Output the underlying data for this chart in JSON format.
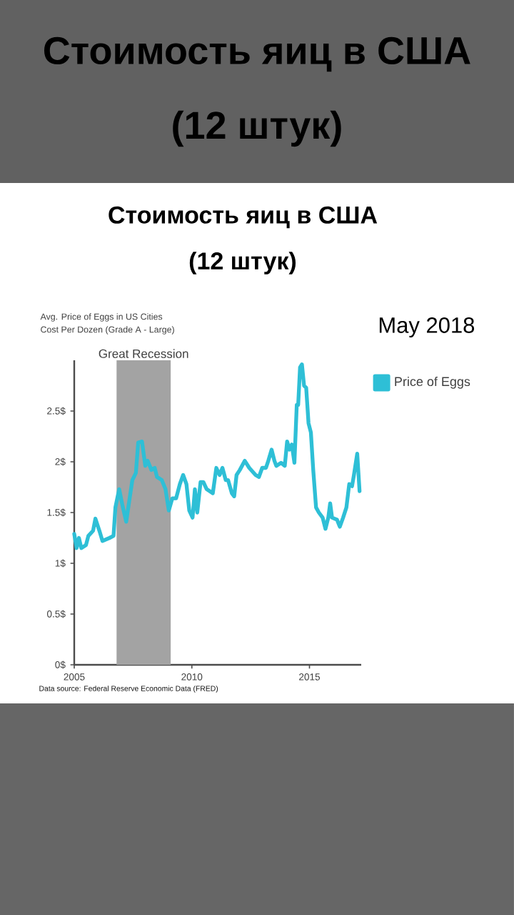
{
  "chart_data": {
    "type": "line",
    "title": "Стоимость яиц в США",
    "subtitle": "(12 штук)",
    "annotations": [
      "Avg. Price of Eggs in US Cities",
      "Cost Per Dozen (Grade A - Large)",
      "May 2018",
      "Data source: Federal Reserve Economic Data (FRED)"
    ],
    "xlim": [
      2005,
      2017.2
    ],
    "xticks": [
      2005,
      2010,
      2015
    ],
    "ylim": [
      0,
      3.0
    ],
    "yticks": [
      {
        "value": 0,
        "label": "0$"
      },
      {
        "value": 0.5,
        "label": "0.5$"
      },
      {
        "value": 1,
        "label": "1$"
      },
      {
        "value": 1.5,
        "label": "1.5$"
      },
      {
        "value": 2,
        "label": "2$"
      },
      {
        "value": 2.5,
        "label": "2.5$"
      }
    ],
    "bands": [
      {
        "axis": "x",
        "from": 2006.8,
        "to": 2009.1,
        "label": "Great Recession",
        "color": "#a3a3a3"
      }
    ],
    "legend": "top right",
    "marker": "none",
    "line_style": "solid",
    "series": [
      {
        "name": "Price of Eggs",
        "color": "#2ebfd6",
        "x": [
          2005.0,
          2005.1,
          2005.2,
          2005.3,
          2005.5,
          2005.6,
          2005.8,
          2005.9,
          2006.07,
          2006.2,
          2006.5,
          2006.67,
          2006.75,
          2006.91,
          2007.05,
          2007.21,
          2007.31,
          2007.47,
          2007.62,
          2007.72,
          2007.88,
          2008.02,
          2008.12,
          2008.28,
          2008.42,
          2008.52,
          2008.72,
          2008.88,
          2009.02,
          2009.17,
          2009.33,
          2009.49,
          2009.63,
          2009.77,
          2009.89,
          2010.03,
          2010.13,
          2010.23,
          2010.37,
          2010.49,
          2010.63,
          2010.89,
          2011.04,
          2011.18,
          2011.3,
          2011.44,
          2011.54,
          2011.7,
          2011.8,
          2011.9,
          2012.04,
          2012.25,
          2012.44,
          2012.71,
          2012.85,
          2012.99,
          2013.15,
          2013.25,
          2013.39,
          2013.51,
          2013.59,
          2013.79,
          2013.95,
          2014.05,
          2014.15,
          2014.25,
          2014.36,
          2014.46,
          2014.52,
          2014.6,
          2014.68,
          2014.77,
          2014.86,
          2014.96,
          2015.06,
          2015.16,
          2015.28,
          2015.4,
          2015.56,
          2015.68,
          2015.8,
          2015.88,
          2015.96,
          2016.17,
          2016.29,
          2016.43,
          2016.57,
          2016.69,
          2016.81,
          2016.89,
          2017.03,
          2017.13
        ],
        "values": [
          1.29,
          1.15,
          1.25,
          1.15,
          1.18,
          1.27,
          1.32,
          1.44,
          1.32,
          1.22,
          1.25,
          1.27,
          1.55,
          1.73,
          1.57,
          1.41,
          1.57,
          1.82,
          1.89,
          2.19,
          2.2,
          1.96,
          2.01,
          1.92,
          1.94,
          1.85,
          1.82,
          1.73,
          1.52,
          1.64,
          1.64,
          1.78,
          1.87,
          1.78,
          1.52,
          1.45,
          1.73,
          1.5,
          1.8,
          1.8,
          1.73,
          1.69,
          1.94,
          1.87,
          1.94,
          1.82,
          1.82,
          1.69,
          1.66,
          1.87,
          1.92,
          2.01,
          1.94,
          1.87,
          1.85,
          1.94,
          1.94,
          2.01,
          2.12,
          2.01,
          1.96,
          1.99,
          1.96,
          2.2,
          2.12,
          2.17,
          1.99,
          2.56,
          2.56,
          2.93,
          2.96,
          2.75,
          2.73,
          2.38,
          2.29,
          1.92,
          1.55,
          1.5,
          1.45,
          1.34,
          1.45,
          1.59,
          1.45,
          1.43,
          1.36,
          1.45,
          1.55,
          1.78,
          1.76,
          1.87,
          2.08,
          1.71
        ]
      }
    ]
  }
}
